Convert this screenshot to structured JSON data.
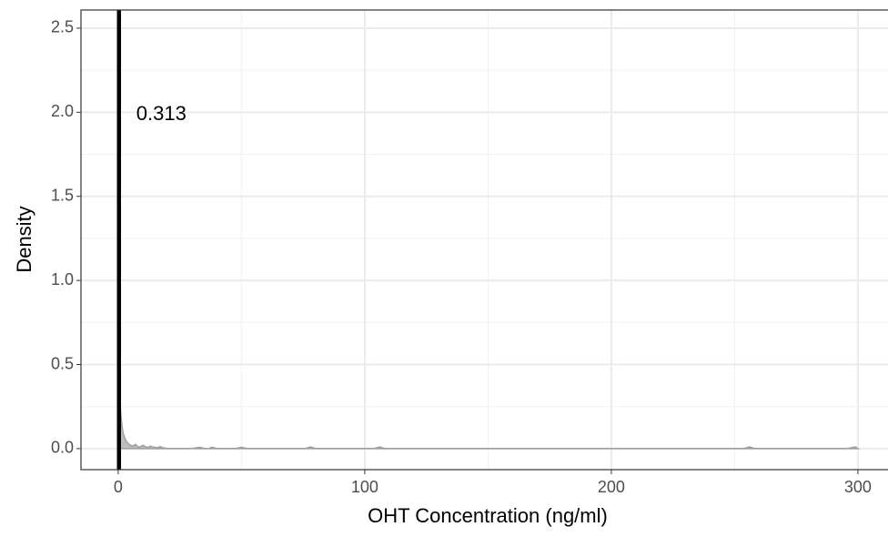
{
  "chart_data": {
    "type": "density",
    "x_label": "OHT Concentration (ng/ml)",
    "y_label": "Density",
    "x": [
      0,
      0.3,
      0.6,
      1,
      1.5,
      2,
      3,
      4,
      5,
      6,
      7,
      8,
      9,
      10,
      12,
      13,
      14,
      16,
      17,
      18,
      20,
      30,
      33,
      35,
      37,
      38,
      40,
      48,
      50,
      52,
      76,
      78,
      80,
      104,
      106,
      108,
      250,
      254,
      256,
      258,
      296,
      299,
      300
    ],
    "values": [
      0.05,
      0.35,
      0.3,
      0.22,
      0.14,
      0.09,
      0.05,
      0.03,
      0.02,
      0.015,
      0.025,
      0.01,
      0.01,
      0.02,
      0.005,
      0.015,
      0.01,
      0.005,
      0.012,
      0.005,
      0.001,
      0.001,
      0.008,
      0.001,
      0.001,
      0.008,
      0.001,
      0.001,
      0.008,
      0.001,
      0.001,
      0.01,
      0.001,
      0.001,
      0.01,
      0.001,
      0.001,
      0.001,
      0.01,
      0.001,
      0.001,
      0.01,
      0.0
    ],
    "color": "#bdbdbd",
    "line_color": "#9e9e9e",
    "vline": {
      "x": 0.313,
      "color": "#000000"
    },
    "xlim": [
      -15.1,
      315
    ],
    "ylim": [
      -0.125,
      2.608
    ],
    "xticks": [
      0,
      100,
      200,
      300
    ],
    "xminor": [
      50,
      150,
      250
    ],
    "yticks": [
      {
        "value": 0,
        "label": "0.0"
      },
      0.5,
      {
        "value": 1,
        "label": "1.0"
      },
      1.5,
      {
        "value": 2,
        "label": "2.0"
      },
      2.5
    ],
    "yminor": [
      0.25,
      0.75,
      1.25,
      1.75,
      2.25
    ],
    "grid": true
  }
}
